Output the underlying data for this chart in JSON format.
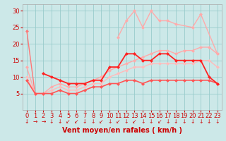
{
  "xlabel": "Vent moyen/en rafales ( km/h )",
  "bg_color": "#cce8e8",
  "grid_color": "#99cccc",
  "xlim": [
    -0.5,
    23.5
  ],
  "ylim": [
    0,
    32
  ],
  "yticks": [
    5,
    10,
    15,
    20,
    25,
    30
  ],
  "xticks": [
    0,
    1,
    2,
    3,
    4,
    5,
    6,
    7,
    8,
    9,
    10,
    11,
    12,
    13,
    14,
    15,
    16,
    17,
    18,
    19,
    20,
    21,
    22,
    23
  ],
  "lines": [
    {
      "x": [
        0,
        1
      ],
      "y": [
        24,
        5
      ],
      "color": "#ff7777",
      "lw": 1.0,
      "marker": "D",
      "ms": 2.5,
      "alpha": 1.0
    },
    {
      "x": [
        0,
        1,
        2,
        3,
        4,
        5,
        6,
        7,
        8,
        9,
        10,
        11,
        12,
        13,
        14,
        15,
        16,
        17,
        18,
        19,
        20,
        21,
        22,
        23
      ],
      "y": [
        13,
        5,
        5,
        7,
        8,
        7,
        7,
        8,
        9,
        10,
        12,
        13,
        14,
        15,
        16,
        17,
        18,
        18,
        17,
        18,
        18,
        19,
        19,
        17
      ],
      "color": "#ffaaaa",
      "lw": 1.0,
      "marker": "D",
      "ms": 2.5,
      "alpha": 1.0
    },
    {
      "x": [
        0,
        1,
        2,
        3,
        4,
        5,
        6,
        7,
        8,
        9,
        10,
        11,
        12,
        13,
        14,
        15,
        16,
        17,
        18,
        19,
        20,
        21,
        22,
        23
      ],
      "y": [
        10,
        5,
        5,
        6,
        7,
        6,
        6,
        7,
        8,
        8,
        10,
        11,
        12,
        13,
        13,
        14,
        14,
        14,
        14,
        14,
        14,
        15,
        15,
        13
      ],
      "color": "#ffbbbb",
      "lw": 1.0,
      "marker": "D",
      "ms": 2.5,
      "alpha": 1.0
    },
    {
      "x": [
        0,
        1,
        2,
        3,
        4,
        5,
        6,
        7,
        8,
        9,
        10,
        11,
        12,
        13,
        14,
        15,
        16,
        17,
        18,
        19,
        20,
        21,
        22,
        23
      ],
      "y": [
        9,
        5,
        5,
        5,
        6,
        5,
        5,
        6,
        7,
        7,
        8,
        8,
        9,
        9,
        8,
        9,
        9,
        9,
        9,
        9,
        9,
        9,
        9,
        8
      ],
      "color": "#ff5555",
      "lw": 1.2,
      "marker": "D",
      "ms": 2.5,
      "alpha": 1.0
    },
    {
      "x": [
        2,
        3,
        4,
        5,
        6,
        7,
        8,
        9,
        10,
        11,
        12,
        13,
        14,
        15,
        16,
        17,
        18,
        19,
        20,
        21,
        22,
        23
      ],
      "y": [
        11,
        10,
        9,
        8,
        8,
        8,
        9,
        9,
        13,
        13,
        17,
        17,
        15,
        15,
        17,
        17,
        15,
        15,
        15,
        15,
        10,
        8
      ],
      "color": "#ff2222",
      "lw": 1.3,
      "marker": "D",
      "ms": 2.5,
      "alpha": 1.0
    },
    {
      "x": [
        11,
        12,
        13,
        14,
        15,
        16,
        17,
        18,
        20,
        21,
        23
      ],
      "y": [
        22,
        27,
        30,
        25,
        30,
        27,
        27,
        26,
        25,
        29,
        17
      ],
      "color": "#ffaaaa",
      "lw": 1.0,
      "marker": "D",
      "ms": 2.5,
      "alpha": 1.0
    }
  ],
  "arrow_color": "#cc0000",
  "xlabel_color": "#cc0000",
  "xlabel_fontsize": 7,
  "tick_fontsize": 6,
  "tick_color": "#cc0000",
  "arrow_symbols": [
    "↓",
    "→",
    "→",
    "↓",
    "↓",
    "↙",
    "↙",
    "↓",
    "↓",
    "↙",
    "↓",
    "↙",
    "↓",
    "↙",
    "↓",
    "↓",
    "↙",
    "↓",
    "↓",
    "↓",
    "↓",
    "↓",
    "↓",
    "↓"
  ]
}
